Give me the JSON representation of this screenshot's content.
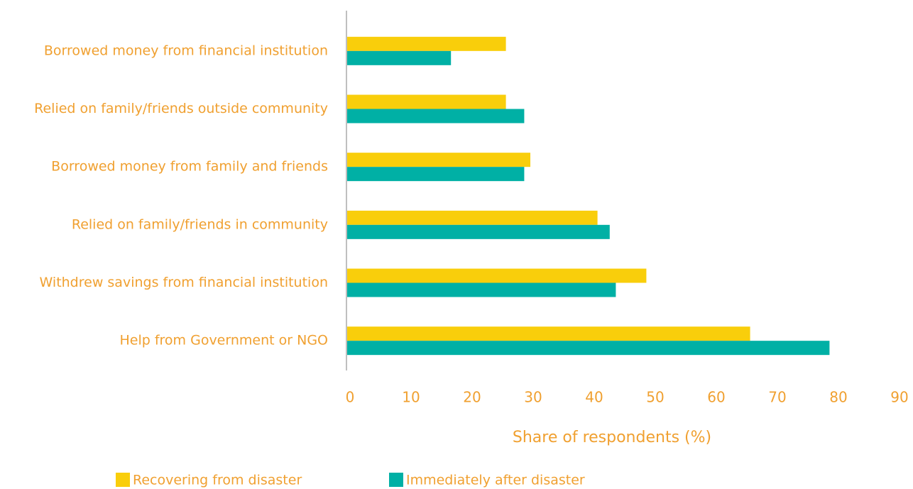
{
  "chart_data": {
    "type": "bar",
    "orientation": "horizontal",
    "x_label": "Share of respondents (%)",
    "categories": [
      "Borrowed money from financial institution",
      "Relied on family/friends outside community",
      "Borrowed money from family and friends",
      "Relied on family/friends in community",
      "Withdrew savings from financial institution",
      "Help from Government or NGO"
    ],
    "series": [
      {
        "name": "Recovering from disaster",
        "color": "#f9ce0b",
        "values": [
          26,
          26,
          30,
          41,
          49,
          66
        ]
      },
      {
        "name": "Immediately after disaster",
        "color": "#00b0a5",
        "values": [
          17,
          29,
          29,
          43,
          44,
          79
        ]
      }
    ],
    "xlim": [
      0,
      90
    ],
    "xticks": [
      0,
      10,
      20,
      30,
      40,
      50,
      60,
      70,
      80,
      90
    ],
    "grid": false
  }
}
